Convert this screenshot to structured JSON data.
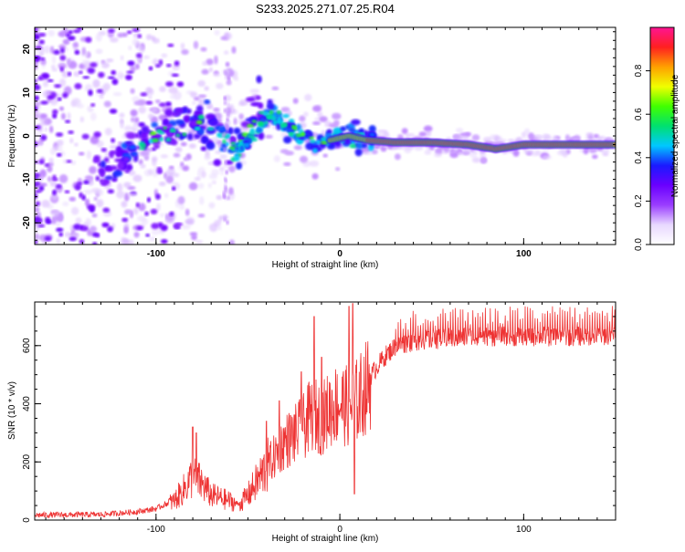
{
  "title": "S233.2025.271.07.25.R04",
  "chart_data": [
    {
      "type": "heatmap",
      "name": "spectrogram",
      "xlabel": "Height of straight line (km)",
      "ylabel": "Frequency (Hz)",
      "xlim": [
        -166,
        150
      ],
      "ylim": [
        -25,
        25
      ],
      "x_ticks": [
        -100,
        0,
        100
      ],
      "y_ticks": [
        -20,
        -10,
        0,
        10,
        20
      ],
      "x_tick_labels": [
        "-100",
        "0",
        "100"
      ],
      "y_tick_labels": [
        "-20",
        "-10",
        "0",
        "10",
        "20"
      ],
      "colorbar": {
        "label": "Normalized spectral amplitude",
        "range": [
          0,
          1
        ],
        "ticks": [
          0.0,
          0.2,
          0.4,
          0.6,
          0.8
        ],
        "tick_labels": [
          "0.0",
          "0.2",
          "0.4",
          "0.6",
          "0.8"
        ],
        "colors": [
          "#ffffff",
          "#e8d8ff",
          "#9a3dff",
          "#6a00ff",
          "#1a1aff",
          "#00c8ff",
          "#00e070",
          "#40ff00",
          "#f0ff00",
          "#ffa000",
          "#ff2020",
          "#ff1493"
        ]
      },
      "ridge": {
        "description_points_km_hz": [
          [
            -140,
            -8
          ],
          [
            -120,
            -6
          ],
          [
            -110,
            -2
          ],
          [
            -100,
            0
          ],
          [
            -90,
            1
          ],
          [
            -80,
            2
          ],
          [
            -70,
            3
          ],
          [
            -55,
            -3
          ],
          [
            -45,
            5
          ],
          [
            -35,
            4
          ],
          [
            -25,
            1
          ],
          [
            -15,
            -1
          ],
          [
            -5,
            -1
          ],
          [
            5,
            0
          ],
          [
            15,
            -1
          ],
          [
            30,
            -1.5
          ],
          [
            50,
            -1.5
          ],
          [
            70,
            -2
          ],
          [
            85,
            -3
          ],
          [
            100,
            -2
          ],
          [
            120,
            -2
          ],
          [
            145,
            -2
          ]
        ],
        "strong_band_km": [
          15,
          150
        ],
        "strong_band_hz": -2
      }
    },
    {
      "type": "line",
      "name": "snr",
      "xlabel": "Height of straight line (km)",
      "ylabel": "SNR (10 * v/v)",
      "xlim": [
        -166,
        150
      ],
      "ylim": [
        0,
        750
      ],
      "x_ticks": [
        -100,
        0,
        100
      ],
      "y_ticks": [
        0,
        200,
        400,
        600
      ],
      "x_tick_labels": [
        "-100",
        "0",
        "100"
      ],
      "y_tick_labels": [
        "0",
        "200",
        "400",
        "600"
      ],
      "color": "#ee3333",
      "envelope_km_snr": [
        [
          -166,
          18
        ],
        [
          -130,
          20
        ],
        [
          -110,
          30
        ],
        [
          -100,
          40
        ],
        [
          -90,
          70
        ],
        [
          -85,
          110
        ],
        [
          -80,
          160
        ],
        [
          -75,
          130
        ],
        [
          -70,
          90
        ],
        [
          -60,
          70
        ],
        [
          -55,
          55
        ],
        [
          -50,
          90
        ],
        [
          -45,
          140
        ],
        [
          -40,
          190
        ],
        [
          -35,
          230
        ],
        [
          -30,
          280
        ],
        [
          -25,
          300
        ],
        [
          -20,
          330
        ],
        [
          -15,
          380
        ],
        [
          -10,
          360
        ],
        [
          -5,
          400
        ],
        [
          0,
          420
        ],
        [
          5,
          400
        ],
        [
          10,
          430
        ],
        [
          15,
          480
        ],
        [
          20,
          530
        ],
        [
          25,
          570
        ],
        [
          30,
          600
        ],
        [
          40,
          620
        ],
        [
          60,
          630
        ],
        [
          80,
          635
        ],
        [
          100,
          635
        ],
        [
          120,
          635
        ],
        [
          150,
          640
        ]
      ],
      "spikes_km_snr": [
        [
          -80,
          320
        ],
        [
          -78,
          300
        ],
        [
          -40,
          340
        ],
        [
          -33,
          410
        ],
        [
          -21,
          510
        ],
        [
          -14,
          700
        ],
        [
          -10,
          560
        ],
        [
          5,
          735
        ],
        [
          7,
          745
        ],
        [
          8,
          90
        ],
        [
          10,
          300
        ]
      ]
    }
  ]
}
